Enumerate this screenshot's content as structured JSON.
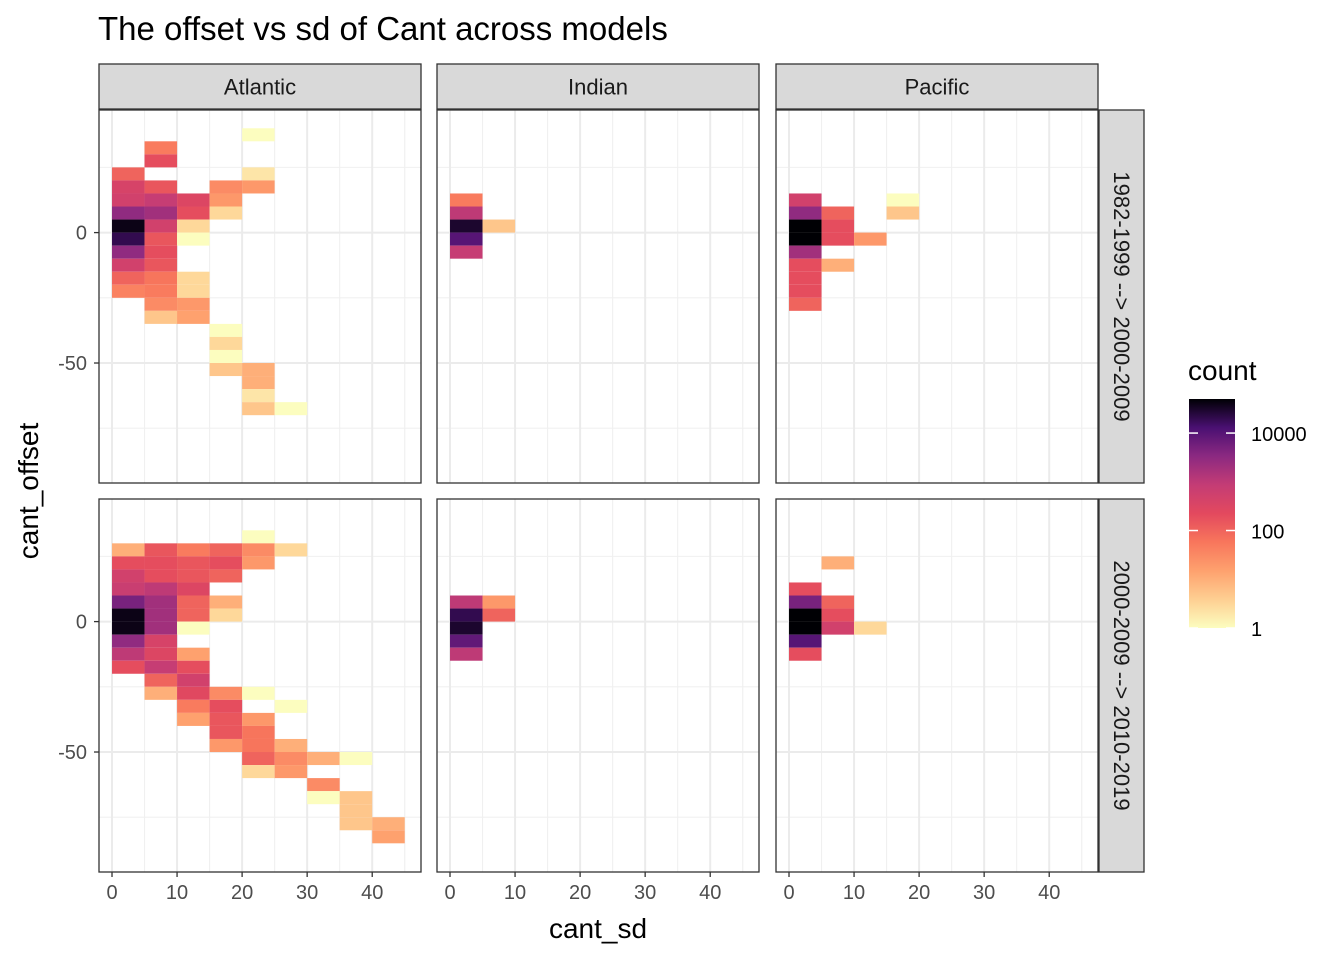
{
  "chart_data": {
    "type": "heatmap",
    "title": "The offset vs sd of Cant across models",
    "xlabel": "cant_sd",
    "ylabel": "cant_offset",
    "xlim": [
      -2,
      47.5
    ],
    "ylim": [
      -96,
      47
    ],
    "x_ticks": [
      0,
      10,
      20,
      30,
      40
    ],
    "y_ticks": [
      -50,
      0
    ],
    "bin_width": 5,
    "col_facets": [
      "Atlantic",
      "Indian",
      "Pacific"
    ],
    "row_facets": [
      "1982-1999 --> 2000-2009",
      "2000-2009 --> 2010-2019"
    ],
    "legend": {
      "title": "count",
      "scale": "log10",
      "breaks": [
        1,
        100,
        10000
      ],
      "labels": [
        "1",
        "100",
        "10000"
      ],
      "max": 50000,
      "position": "right"
    },
    "panels": [
      {
        "row": 0,
        "col": 0,
        "cells": [
          [
            20,
            35,
            1
          ],
          [
            5,
            30,
            50
          ],
          [
            0,
            20,
            100
          ],
          [
            5,
            25,
            200
          ],
          [
            20,
            20,
            2
          ],
          [
            15,
            15,
            30
          ],
          [
            0,
            15,
            400
          ],
          [
            5,
            15,
            150
          ],
          [
            20,
            15,
            20
          ],
          [
            0,
            10,
            500
          ],
          [
            5,
            10,
            800
          ],
          [
            10,
            10,
            300
          ],
          [
            15,
            10,
            20
          ],
          [
            0,
            5,
            3000
          ],
          [
            5,
            5,
            2000
          ],
          [
            10,
            5,
            200
          ],
          [
            15,
            5,
            3
          ],
          [
            0,
            0,
            40000
          ],
          [
            5,
            0,
            500
          ],
          [
            10,
            0,
            3
          ],
          [
            0,
            -5,
            20000
          ],
          [
            5,
            -5,
            150
          ],
          [
            10,
            -5,
            1
          ],
          [
            0,
            -10,
            3000
          ],
          [
            5,
            -10,
            200
          ],
          [
            0,
            -15,
            500
          ],
          [
            5,
            -15,
            150
          ],
          [
            0,
            -20,
            100
          ],
          [
            5,
            -20,
            60
          ],
          [
            10,
            -20,
            3
          ],
          [
            0,
            -25,
            40
          ],
          [
            5,
            -25,
            50
          ],
          [
            10,
            -25,
            3
          ],
          [
            5,
            -30,
            30
          ],
          [
            10,
            -30,
            20
          ],
          [
            5,
            -35,
            5
          ],
          [
            10,
            -35,
            15
          ],
          [
            15,
            -40,
            1
          ],
          [
            15,
            -45,
            3
          ],
          [
            15,
            -50,
            1
          ],
          [
            15,
            -55,
            5
          ],
          [
            20,
            -55,
            10
          ],
          [
            20,
            -60,
            10
          ],
          [
            20,
            -65,
            2
          ],
          [
            20,
            -70,
            5
          ],
          [
            25,
            -70,
            1
          ]
        ]
      },
      {
        "row": 0,
        "col": 1,
        "cells": [
          [
            0,
            10,
            50
          ],
          [
            0,
            5,
            1000
          ],
          [
            0,
            0,
            30000
          ],
          [
            5,
            0,
            5
          ],
          [
            0,
            -5,
            10000
          ],
          [
            0,
            -10,
            800
          ]
        ]
      },
      {
        "row": 0,
        "col": 2,
        "cells": [
          [
            0,
            10,
            500
          ],
          [
            15,
            10,
            1
          ],
          [
            0,
            5,
            3000
          ],
          [
            5,
            5,
            100
          ],
          [
            15,
            5,
            5
          ],
          [
            0,
            0,
            50000
          ],
          [
            5,
            0,
            200
          ],
          [
            0,
            -5,
            50000
          ],
          [
            5,
            -5,
            200
          ],
          [
            10,
            -5,
            20
          ],
          [
            0,
            -10,
            2000
          ],
          [
            0,
            -15,
            200
          ],
          [
            5,
            -15,
            10
          ],
          [
            0,
            -20,
            200
          ],
          [
            0,
            -25,
            200
          ],
          [
            0,
            -30,
            100
          ]
        ]
      },
      {
        "row": 1,
        "col": 0,
        "cells": [
          [
            20,
            30,
            1
          ],
          [
            0,
            25,
            10
          ],
          [
            5,
            25,
            150
          ],
          [
            10,
            25,
            50
          ],
          [
            15,
            25,
            100
          ],
          [
            20,
            25,
            30
          ],
          [
            25,
            25,
            3
          ],
          [
            0,
            20,
            200
          ],
          [
            5,
            20,
            200
          ],
          [
            10,
            20,
            150
          ],
          [
            15,
            20,
            200
          ],
          [
            20,
            20,
            20
          ],
          [
            0,
            15,
            500
          ],
          [
            5,
            15,
            200
          ],
          [
            10,
            15,
            150
          ],
          [
            15,
            15,
            100
          ],
          [
            0,
            10,
            700
          ],
          [
            5,
            10,
            1000
          ],
          [
            10,
            10,
            300
          ],
          [
            0,
            5,
            5000
          ],
          [
            5,
            5,
            2000
          ],
          [
            10,
            5,
            100
          ],
          [
            15,
            5,
            10
          ],
          [
            0,
            0,
            40000
          ],
          [
            5,
            0,
            2000
          ],
          [
            10,
            0,
            100
          ],
          [
            15,
            0,
            3
          ],
          [
            0,
            -5,
            40000
          ],
          [
            5,
            -5,
            2000
          ],
          [
            10,
            -5,
            1
          ],
          [
            0,
            -10,
            3000
          ],
          [
            5,
            -10,
            400
          ],
          [
            0,
            -15,
            1000
          ],
          [
            5,
            -15,
            300
          ],
          [
            10,
            -15,
            15
          ],
          [
            0,
            -20,
            200
          ],
          [
            5,
            -20,
            800
          ],
          [
            10,
            -20,
            200
          ],
          [
            5,
            -25,
            100
          ],
          [
            10,
            -25,
            500
          ],
          [
            5,
            -30,
            10
          ],
          [
            10,
            -30,
            250
          ],
          [
            15,
            -30,
            30
          ],
          [
            20,
            -30,
            1
          ],
          [
            10,
            -35,
            50
          ],
          [
            15,
            -35,
            200
          ],
          [
            25,
            -35,
            1
          ],
          [
            10,
            -40,
            15
          ],
          [
            15,
            -40,
            150
          ],
          [
            20,
            -40,
            20
          ],
          [
            15,
            -45,
            150
          ],
          [
            20,
            -45,
            60
          ],
          [
            15,
            -50,
            20
          ],
          [
            20,
            -50,
            60
          ],
          [
            25,
            -50,
            10
          ],
          [
            20,
            -55,
            100
          ],
          [
            25,
            -55,
            30
          ],
          [
            30,
            -55,
            10
          ],
          [
            35,
            -55,
            1
          ],
          [
            20,
            -60,
            3
          ],
          [
            25,
            -60,
            20
          ],
          [
            30,
            -65,
            30
          ],
          [
            30,
            -70,
            1
          ],
          [
            35,
            -70,
            5
          ],
          [
            35,
            -75,
            5
          ],
          [
            35,
            -80,
            5
          ],
          [
            40,
            -80,
            10
          ],
          [
            40,
            -85,
            15
          ]
        ]
      },
      {
        "row": 1,
        "col": 1,
        "cells": [
          [
            0,
            5,
            1000
          ],
          [
            5,
            5,
            20
          ],
          [
            0,
            0,
            20000
          ],
          [
            5,
            0,
            100
          ],
          [
            0,
            -5,
            30000
          ],
          [
            0,
            -10,
            8000
          ],
          [
            0,
            -15,
            1000
          ]
        ]
      },
      {
        "row": 1,
        "col": 2,
        "cells": [
          [
            5,
            20,
            10
          ],
          [
            0,
            10,
            200
          ],
          [
            0,
            5,
            5000
          ],
          [
            5,
            5,
            100
          ],
          [
            0,
            0,
            50000
          ],
          [
            5,
            0,
            200
          ],
          [
            0,
            -5,
            50000
          ],
          [
            5,
            -5,
            500
          ],
          [
            10,
            -5,
            3
          ],
          [
            0,
            -10,
            10000
          ],
          [
            0,
            -15,
            200
          ]
        ]
      }
    ]
  }
}
